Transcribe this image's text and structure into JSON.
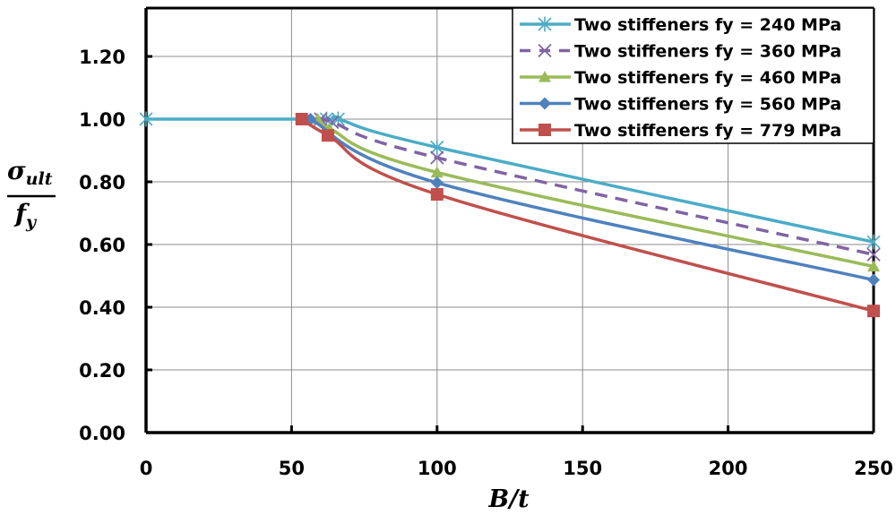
{
  "chart_data": {
    "type": "line",
    "title": "",
    "xlabel": "B/t",
    "ylabel": {
      "numerator": "σ",
      "numerator_sub": "ult",
      "denominator": "f",
      "denominator_sub": "y"
    },
    "xlim": [
      0,
      250
    ],
    "ylim": [
      0,
      1.35
    ],
    "x_ticks": [
      0,
      50,
      100,
      150,
      200,
      250
    ],
    "x_tick_labels": [
      "0",
      "50",
      "100",
      "150",
      "200",
      "250"
    ],
    "y_ticks": [
      0,
      0.2,
      0.4,
      0.6,
      0.8,
      1.0,
      1.2
    ],
    "y_tick_labels": [
      "0.00",
      "0.20",
      "0.40",
      "0.60",
      "0.80",
      "1.00",
      "1.20"
    ],
    "grid": true,
    "legend_position": "top-right",
    "series": [
      {
        "name": "Two stiffeners fy = 240 MPa",
        "color": "#4bacc6",
        "marker": "asterisk",
        "dash": false,
        "x": [
          0,
          62,
          66,
          100,
          250
        ],
        "y": [
          1.0,
          1.0,
          1.0,
          0.91,
          0.608
        ]
      },
      {
        "name": "Two stiffeners fy = 360 MPa",
        "color": "#8064a2",
        "marker": "x",
        "dash": true,
        "x": [
          60,
          64,
          100,
          250
        ],
        "y": [
          1.0,
          0.99,
          0.877,
          0.568
        ]
      },
      {
        "name": "Two stiffeners fy = 460 MPa",
        "color": "#9bbb59",
        "marker": "triangle",
        "dash": false,
        "x": [
          59,
          63,
          100,
          250
        ],
        "y": [
          1.0,
          0.97,
          0.83,
          0.53
        ]
      },
      {
        "name": "Two stiffeners fy = 560 MPa",
        "color": "#4f81bd",
        "marker": "diamond",
        "dash": false,
        "x": [
          56.5,
          100,
          250
        ],
        "y": [
          1.0,
          0.797,
          0.487
        ]
      },
      {
        "name": "Two stiffeners fy = 779 MPa",
        "color": "#c0504d",
        "marker": "square",
        "dash": false,
        "x": [
          53.5,
          62.5,
          100,
          250
        ],
        "y": [
          1.0,
          0.948,
          0.76,
          0.388
        ]
      }
    ]
  }
}
